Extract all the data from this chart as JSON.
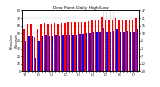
{
  "title": "Dew Point Daily High/Low",
  "ylabel_left": "Milwaukee\nWisconsin",
  "high_color": "#ff0000",
  "low_color": "#0000ff",
  "background_color": "#ffffff",
  "grid_color": "#cccccc",
  "highs": [
    55,
    62,
    62,
    45,
    55,
    62,
    63,
    62,
    62,
    63,
    62,
    63,
    63,
    65,
    65,
    65,
    65,
    65,
    65,
    66,
    67,
    67,
    68,
    72,
    68,
    67,
    68,
    70,
    68,
    68,
    68,
    68,
    68,
    70
  ],
  "lows": [
    40,
    47,
    47,
    18,
    40,
    47,
    48,
    47,
    47,
    48,
    47,
    48,
    48,
    48,
    48,
    48,
    49,
    49,
    50,
    50,
    52,
    52,
    52,
    57,
    52,
    52,
    53,
    55,
    52,
    52,
    53,
    52,
    52,
    55
  ],
  "ylim_min": 0,
  "ylim_max": 80,
  "yticks_left": [
    0,
    10,
    20,
    30,
    40,
    50,
    60,
    70,
    80
  ],
  "ytick_labels_left": [
    "0",
    "10",
    "20",
    "30",
    "40",
    "50",
    "60",
    "70",
    "80"
  ],
  "yticks_right": [
    0,
    10,
    20,
    30,
    40,
    50,
    60,
    70,
    80
  ],
  "ytick_labels_right": [
    "-18",
    "-12",
    "-7",
    "-1",
    "4",
    "10",
    "16",
    "21",
    "27"
  ],
  "num_bars": 34,
  "dotted_indices": [
    23,
    24,
    25,
    26
  ],
  "bar_width": 0.42
}
